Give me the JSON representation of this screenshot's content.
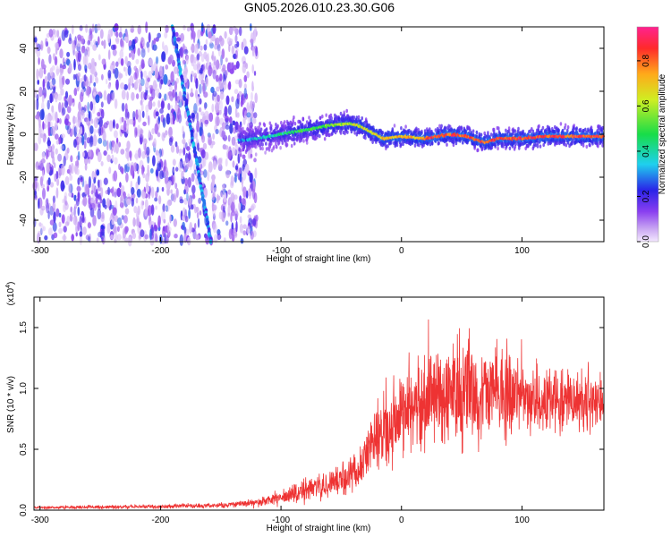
{
  "title": "GN05.2026.010.23.30.G06",
  "chart_data": [
    {
      "type": "heatmap",
      "xlabel": "Height of straight line (km)",
      "ylabel": "Frequency (Hz)",
      "xlim": [
        -305,
        168
      ],
      "ylim": [
        -50,
        50
      ],
      "x_ticks": [
        -300,
        -200,
        -100,
        0,
        100
      ],
      "y_ticks": [
        -40,
        -20,
        0,
        20,
        40
      ],
      "noise_region_x": [
        -305,
        -120
      ],
      "diagonal_track": {
        "x": [
          -190,
          -158
        ],
        "y": [
          50,
          -50
        ]
      },
      "ridge": {
        "x": [
          -135,
          -120,
          -100,
          -80,
          -60,
          -45,
          -35,
          -25,
          -15,
          0,
          20,
          40,
          55,
          65,
          70,
          80,
          100,
          120,
          140,
          168
        ],
        "y": [
          -3,
          -2,
          0,
          2,
          4,
          5,
          4,
          1,
          -2,
          -1,
          -2,
          0,
          -1,
          -3,
          -4,
          -2,
          -2,
          -1,
          -1,
          -1
        ]
      },
      "colorbar": {
        "label": "Normalized spectral amplitude",
        "range": [
          0,
          0.95
        ],
        "ticks": [
          "0.0",
          "0.2",
          "0.4",
          "0.6",
          "0.8"
        ]
      }
    },
    {
      "type": "line",
      "xlabel": "Height of straight line (km)",
      "ylabel": "SNR (10 * v/v)",
      "multiplier_label": "(x10",
      "multiplier_exp": "4",
      "xlim": [
        -305,
        168
      ],
      "ylim": [
        0,
        1.75
      ],
      "x_ticks": [
        -300,
        -200,
        -100,
        0,
        100
      ],
      "y_ticks": [
        "0.0",
        "0.5",
        "1.0",
        "1.5"
      ],
      "series": [
        {
          "name": "SNR",
          "color": "#ee3333",
          "envelope_x": [
            -305,
            -200,
            -150,
            -120,
            -100,
            -80,
            -60,
            -40,
            -30,
            -20,
            -10,
            0,
            20,
            30,
            40,
            60,
            80,
            100,
            140,
            168
          ],
          "envelope_mean": [
            0.02,
            0.03,
            0.04,
            0.06,
            0.1,
            0.16,
            0.22,
            0.3,
            0.45,
            0.6,
            0.7,
            0.78,
            0.9,
            0.95,
            0.98,
            0.98,
            0.95,
            0.92,
            0.9,
            0.92
          ],
          "envelope_spread": [
            0.01,
            0.015,
            0.02,
            0.03,
            0.05,
            0.08,
            0.1,
            0.14,
            0.2,
            0.26,
            0.3,
            0.32,
            0.36,
            0.4,
            0.42,
            0.4,
            0.34,
            0.26,
            0.22,
            0.22
          ]
        }
      ]
    }
  ]
}
